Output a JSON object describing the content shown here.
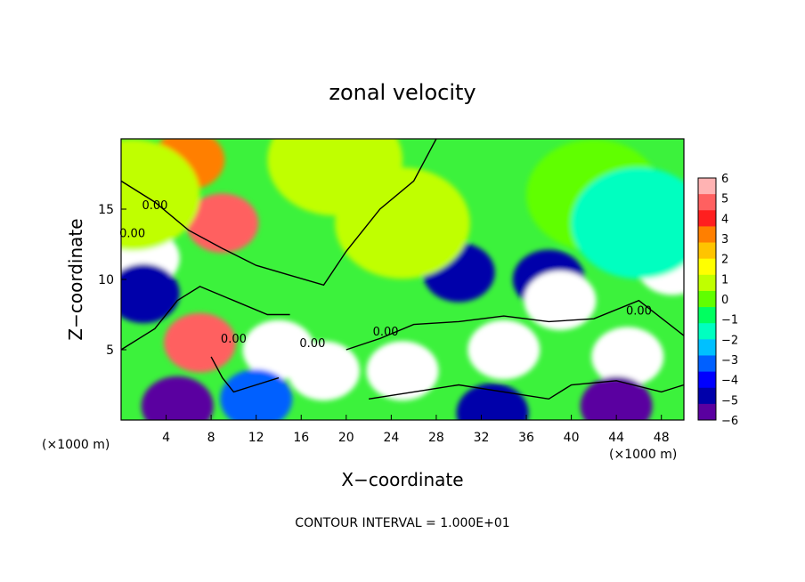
{
  "chart_data": {
    "type": "heatmap",
    "title": "zonal velocity",
    "xlabel": "X−coordinate",
    "ylabel": "Z−coordinate",
    "x_unit_left": "(×1000 m)",
    "x_unit_right": "(×1000 m)",
    "footer": "CONTOUR INTERVAL = 1.000E+01",
    "xlim": [
      0,
      50
    ],
    "ylim": [
      0,
      20
    ],
    "x_ticks": [
      4,
      8,
      12,
      16,
      20,
      24,
      28,
      32,
      36,
      40,
      44,
      48
    ],
    "y_ticks": [
      5,
      10,
      15
    ],
    "colorbar": {
      "ticks": [
        6,
        5,
        4,
        3,
        2,
        1,
        0,
        -1,
        -2,
        -3,
        -4,
        -5,
        -6
      ],
      "tick_labels": [
        "6",
        "5",
        "4",
        "3",
        "2",
        "1",
        "0",
        "−1",
        "−2",
        "−3",
        "−4",
        "−5",
        "−6"
      ],
      "colors": [
        "#ffb3b3",
        "#ff6060",
        "#ff1f1f",
        "#ff7f00",
        "#ffc400",
        "#ffff00",
        "#c0ff00",
        "#60ff00",
        "#00ff60",
        "#00ffc0",
        "#00c0ff",
        "#0060ff",
        "#0000ff",
        "#0000aa",
        "#5a00a0"
      ]
    },
    "contour_label": "0.00",
    "zero_contour_label_count": 6,
    "features": [
      {
        "x": 9,
        "z": 14,
        "value": 4.5
      },
      {
        "x": 6,
        "z": 18.5,
        "value": 3
      },
      {
        "x": 19,
        "z": 18.5,
        "value": 1
      },
      {
        "x": 30,
        "z": 10.5,
        "value": -4.5
      },
      {
        "x": 38,
        "z": 10,
        "value": -5
      },
      {
        "x": 39,
        "z": 8.5,
        "value": -8
      },
      {
        "x": 2,
        "z": 11.5,
        "value": -7
      },
      {
        "x": 2,
        "z": 9,
        "value": -5
      },
      {
        "x": 49,
        "z": 11,
        "value": -7
      },
      {
        "x": 7,
        "z": 5.5,
        "value": 5
      },
      {
        "x": 14,
        "z": 5,
        "value": 7
      },
      {
        "x": 18,
        "z": 3.5,
        "value": -7
      },
      {
        "x": 25,
        "z": 3.5,
        "value": 7
      },
      {
        "x": 34,
        "z": 5,
        "value": 7
      },
      {
        "x": 45,
        "z": 4.5,
        "value": 7
      },
      {
        "x": 44,
        "z": 1,
        "value": -6
      },
      {
        "x": 12,
        "z": 1.5,
        "value": -3
      },
      {
        "x": 5,
        "z": 1,
        "value": -6
      },
      {
        "x": 33,
        "z": 0.5,
        "value": -5
      },
      {
        "x": 25,
        "z": 14,
        "value": 0.5
      },
      {
        "x": 42,
        "z": 16,
        "value": 0.3
      },
      {
        "x": 46,
        "z": 14,
        "value": -1.5
      },
      {
        "x": 1,
        "z": 16,
        "value": 1
      }
    ]
  }
}
